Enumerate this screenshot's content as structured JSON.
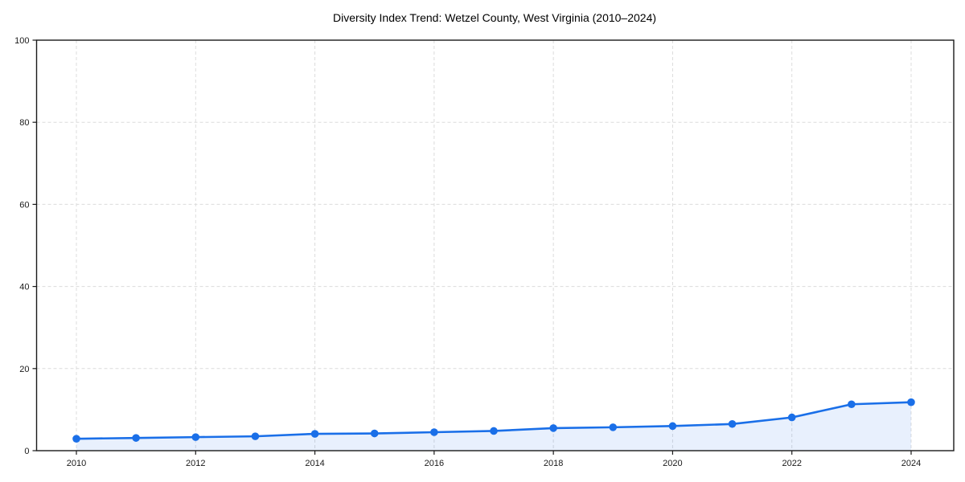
{
  "page": {
    "background_color": "#ffffff"
  },
  "chart_data": {
    "type": "area",
    "title": "Diversity Index Trend: Wetzel County, West Virginia (2010–2024)",
    "x": [
      2010,
      2011,
      2012,
      2013,
      2014,
      2015,
      2016,
      2017,
      2018,
      2019,
      2020,
      2021,
      2022,
      2023,
      2024
    ],
    "series": [
      {
        "name": "Diversity Index",
        "values": [
          2.9,
          3.1,
          3.3,
          3.5,
          4.1,
          4.2,
          4.5,
          4.8,
          5.5,
          5.7,
          6.0,
          6.5,
          8.1,
          11.3,
          11.8
        ]
      }
    ],
    "xlabel": "",
    "ylabel": "",
    "xlim": [
      2009.35,
      2024.72
    ],
    "ylim": [
      0,
      100
    ],
    "xticks": [
      2010,
      2012,
      2014,
      2016,
      2018,
      2020,
      2022,
      2024
    ],
    "yticks": [
      0,
      20,
      40,
      60,
      80,
      100
    ],
    "grid": true,
    "grid_style": "dashed",
    "legend_position": "none",
    "marker": "circle",
    "colors": {
      "line": "#1a6fe8",
      "marker": "#1a6fe8",
      "area_fill": "rgba(26,111,232,0.10)",
      "grid": "#dcdcdc",
      "spine": "#1a1a1a",
      "tick_text": "#1a1a1a",
      "title_text": "#000000",
      "background": "#ffffff"
    }
  }
}
